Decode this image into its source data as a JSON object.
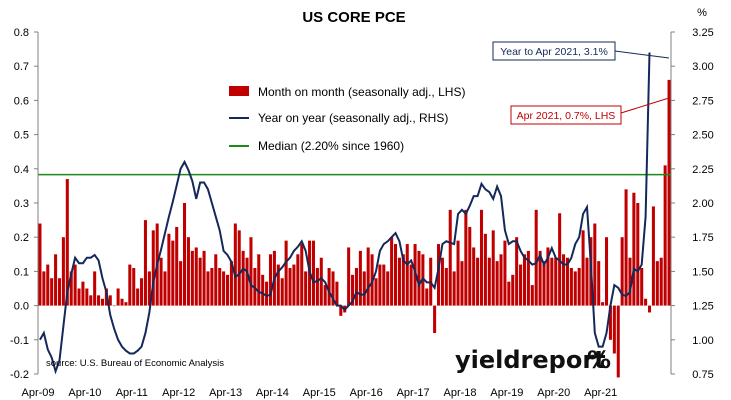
{
  "chart_data": {
    "type": "bar",
    "title": "US CORE PCE",
    "left_unit": "",
    "right_unit": "%",
    "x_tick_labels": [
      "Apr-09",
      "Apr-10",
      "Apr-11",
      "Apr-12",
      "Apr-13",
      "Apr-14",
      "Apr-15",
      "Apr-16",
      "Apr-17",
      "Apr-18",
      "Apr-19",
      "Apr-20",
      "Apr-21"
    ],
    "y_left": {
      "min": -0.2,
      "max": 0.8,
      "ticks": [
        "-0.2",
        "-0.1",
        "0.0",
        "0.1",
        "0.2",
        "0.3",
        "0.4",
        "0.5",
        "0.6",
        "0.7",
        "0.8"
      ]
    },
    "y_right": {
      "min": 0.75,
      "max": 3.25,
      "ticks": [
        "0.75",
        "1.00",
        "1.25",
        "1.50",
        "1.75",
        "2.00",
        "2.25",
        "2.50",
        "2.75",
        "3.00",
        "3.25"
      ]
    },
    "median_left_value": 0.383,
    "grid": false,
    "legend_position": "center-top",
    "series": [
      {
        "name": "Month on month (seasonally adj., LHS)",
        "kind": "bar",
        "axis": "left",
        "color": "#c00000",
        "values": [
          0.24,
          0.1,
          0.12,
          0.08,
          0.15,
          0.08,
          0.2,
          0.37,
          0.1,
          0.12,
          0.05,
          0.07,
          0.05,
          0.03,
          0.1,
          0.03,
          0.02,
          0.05,
          0.03,
          0.0,
          0.05,
          0.02,
          0.01,
          0.12,
          0.11,
          0.05,
          0.08,
          0.25,
          0.1,
          0.22,
          0.24,
          0.14,
          0.1,
          0.21,
          0.19,
          0.23,
          0.13,
          0.3,
          0.2,
          0.16,
          0.17,
          0.14,
          0.16,
          0.1,
          0.11,
          0.15,
          0.11,
          0.1,
          0.09,
          0.13,
          0.24,
          0.22,
          0.16,
          0.14,
          0.2,
          0.11,
          0.15,
          0.09,
          0.07,
          0.15,
          0.16,
          0.12,
          0.08,
          0.19,
          0.11,
          0.12,
          0.15,
          0.18,
          0.1,
          0.19,
          0.19,
          0.11,
          0.14,
          0.06,
          0.11,
          0.1,
          0.07,
          -0.03,
          -0.02,
          0.17,
          0.09,
          0.11,
          0.16,
          0.1,
          0.17,
          0.15,
          0.08,
          0.12,
          0.12,
          0.1,
          0.2,
          0.18,
          0.14,
          0.15,
          0.18,
          0.12,
          0.18,
          0.16,
          0.15,
          0.05,
          0.14,
          -0.08,
          0.18,
          0.14,
          0.11,
          0.28,
          0.1,
          0.19,
          0.13,
          0.28,
          0.23,
          0.17,
          0.14,
          0.28,
          0.21,
          0.14,
          0.22,
          0.13,
          0.15,
          0.19,
          0.07,
          0.09,
          0.2,
          0.12,
          0.15,
          0.16,
          0.06,
          0.28,
          0.16,
          0.13,
          0.17,
          0.14,
          0.14,
          0.27,
          0.15,
          0.14,
          0.11,
          0.1,
          0.11,
          0.22,
          0.14,
          0.2,
          0.24,
          0.13,
          0.01,
          0.2,
          -0.1,
          -0.14,
          -0.21,
          0.2,
          0.34,
          0.14,
          0.33,
          0.3,
          0.11,
          0.02,
          -0.02,
          0.29,
          0.13,
          0.14,
          0.41,
          0.66
        ]
      },
      {
        "name": "Year on year (seasonally adj., RHS)",
        "kind": "line",
        "axis": "right",
        "color": "#14285a",
        "values": [
          1.0,
          1.05,
          0.93,
          0.87,
          0.77,
          0.85,
          1.1,
          1.35,
          1.48,
          1.6,
          1.56,
          1.56,
          1.6,
          1.6,
          1.62,
          1.58,
          1.45,
          1.35,
          1.18,
          1.08,
          1.0,
          0.95,
          0.92,
          0.9,
          0.9,
          0.92,
          0.95,
          1.05,
          1.2,
          1.42,
          1.55,
          1.66,
          1.78,
          1.9,
          2.01,
          2.13,
          2.25,
          2.3,
          2.24,
          2.16,
          2.03,
          2.15,
          2.15,
          2.1,
          2.0,
          1.9,
          1.8,
          1.65,
          1.62,
          1.57,
          1.46,
          1.48,
          1.52,
          1.5,
          1.4,
          1.38,
          1.35,
          1.34,
          1.32,
          1.33,
          1.45,
          1.5,
          1.53,
          1.57,
          1.6,
          1.65,
          1.68,
          1.72,
          1.65,
          1.5,
          1.42,
          1.43,
          1.45,
          1.42,
          1.35,
          1.3,
          1.25,
          1.25,
          1.22,
          1.25,
          1.28,
          1.35,
          1.33,
          1.33,
          1.38,
          1.42,
          1.5,
          1.65,
          1.7,
          1.72,
          1.75,
          1.78,
          1.72,
          1.58,
          1.55,
          1.58,
          1.5,
          1.4,
          1.45,
          1.42,
          1.42,
          1.38,
          1.52,
          1.7,
          1.72,
          1.71,
          1.7,
          1.92,
          1.95,
          1.92,
          1.98,
          2.05,
          2.05,
          2.14,
          2.1,
          2.08,
          2.03,
          2.12,
          2.05,
          1.8,
          1.7,
          1.72,
          1.72,
          1.65,
          1.6,
          1.58,
          1.55,
          1.56,
          1.62,
          1.55,
          1.6,
          1.67,
          1.6,
          1.58,
          1.55,
          1.55,
          1.6,
          1.7,
          1.75,
          1.92,
          1.97,
          1.55,
          1.05,
          0.95,
          0.95,
          1.05,
          1.25,
          1.4,
          1.38,
          1.33,
          1.32,
          1.35,
          1.52,
          1.5,
          1.55,
          1.9,
          3.1
        ]
      }
    ],
    "median": {
      "name": "Median (2.20% since 1960)",
      "color": "#1a8a1a"
    },
    "annotations": [
      {
        "text": "Year to Apr 2021, 3.1%",
        "color": "#14285a"
      },
      {
        "text": "Apr 2021, 0.7%, LHS",
        "color": "#c00000"
      }
    ],
    "source": "source: U.S. Bureau of Economic Analysis",
    "logo": {
      "text": "yieldreport",
      "symbol": "%",
      "symbol_color": "#1a8a1a"
    }
  }
}
